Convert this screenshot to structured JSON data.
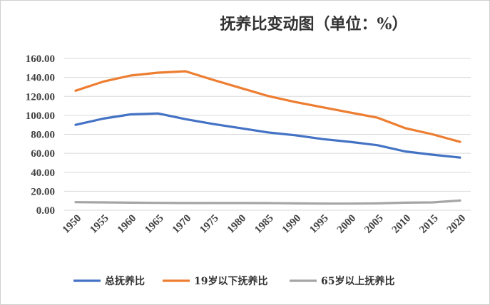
{
  "chart_data": {
    "type": "line",
    "title": "抚养比变动图（单位：%）",
    "xlabel": "",
    "ylabel": "",
    "ylim": [
      0,
      160
    ],
    "y_ticks": [
      "0.00",
      "20.00",
      "40.00",
      "60.00",
      "80.00",
      "100.00",
      "120.00",
      "140.00",
      "160.00"
    ],
    "x": [
      1950,
      1955,
      1960,
      1965,
      1970,
      1975,
      1980,
      1985,
      1990,
      1995,
      2000,
      2005,
      2010,
      2015,
      2020
    ],
    "x_labels": [
      "1950",
      "1955",
      "1960",
      "1965",
      "1970",
      "1975",
      "1980",
      "1985",
      "1990",
      "1995",
      "2000",
      "2005",
      "2010",
      "2015",
      "2020"
    ],
    "series": [
      {
        "name": "总抚养比",
        "color": "#4472C4",
        "values": [
          90,
          96.5,
          101,
          102,
          96,
          91,
          86.5,
          82,
          79,
          75,
          72,
          68.5,
          62,
          58.5,
          55.5
        ]
      },
      {
        "name": "19岁以下抚养比",
        "color": "#ED7D31",
        "values": [
          126,
          135.5,
          142,
          145,
          146.5,
          137.5,
          129,
          120.5,
          114,
          108.5,
          103,
          97.5,
          86.5,
          80,
          72
        ]
      },
      {
        "name": "65岁以上抚养比",
        "color": "#A5A5A5",
        "values": [
          8.5,
          8.3,
          8.0,
          7.7,
          7.6,
          7.6,
          7.6,
          7.5,
          7.2,
          7.0,
          7.0,
          7.2,
          8.0,
          8.3,
          10.2
        ]
      }
    ],
    "grid": true,
    "legend_position": "bottom"
  }
}
